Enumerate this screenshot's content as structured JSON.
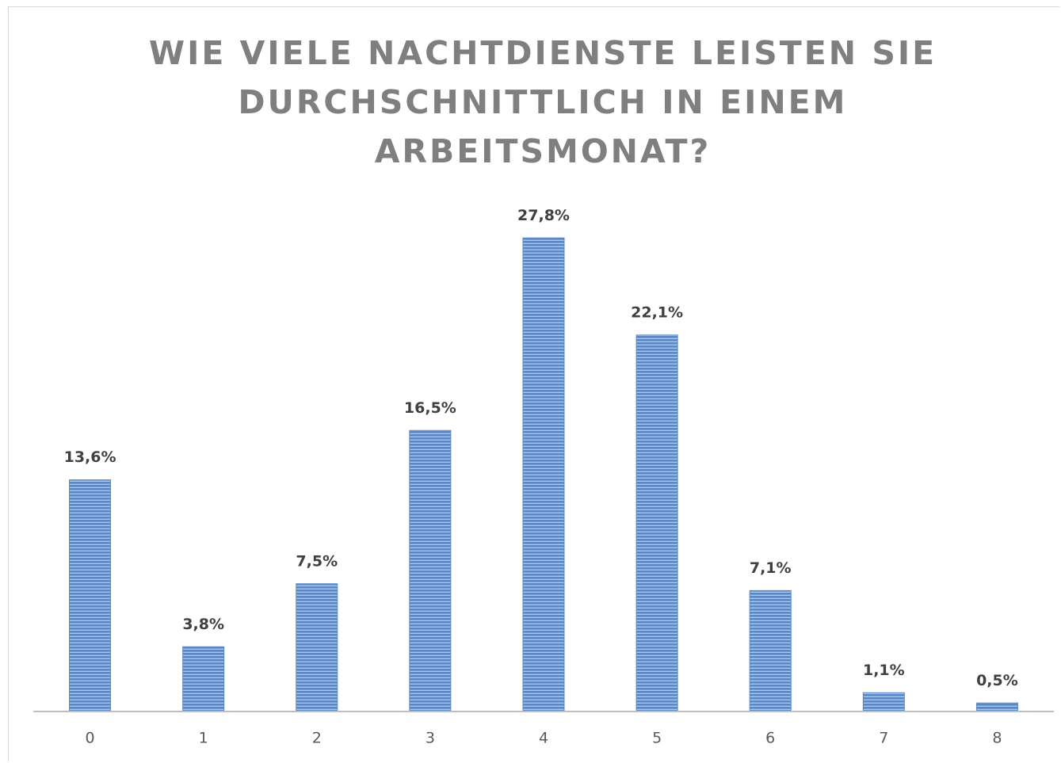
{
  "chart_data": {
    "type": "bar",
    "title": "WIE VIELE NACHTDIENSTE LEISTEN SIE DURCHSCHNITTLICH IN EINEM ARBEITSMONAT?",
    "categories": [
      "0",
      "1",
      "2",
      "3",
      "4",
      "5",
      "6",
      "7",
      "8"
    ],
    "values": [
      13.6,
      3.8,
      7.5,
      16.5,
      27.8,
      22.1,
      7.1,
      1.1,
      0.5
    ],
    "value_labels": [
      "13,6%",
      "3,8%",
      "7,5%",
      "16,5%",
      "27,8%",
      "22,1%",
      "7,1%",
      "1,1%",
      "0,5%"
    ],
    "color": "#5b87c5",
    "ylim": [
      0,
      30
    ]
  }
}
